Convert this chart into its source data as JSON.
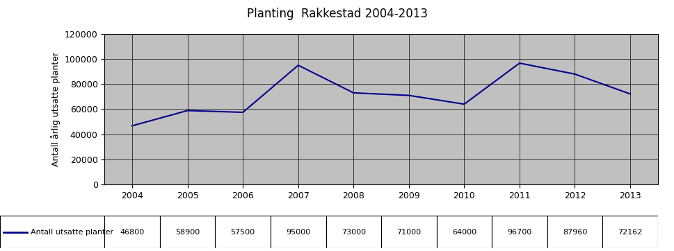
{
  "title": "Planting  Rakkestad 2004-2013",
  "years": [
    2004,
    2005,
    2006,
    2007,
    2008,
    2009,
    2010,
    2011,
    2012,
    2013
  ],
  "values": [
    46800,
    58900,
    57500,
    95000,
    73000,
    71000,
    64000,
    96700,
    87960,
    72162
  ],
  "ylabel": "Antall årlig utsatte planter",
  "legend_label": "Antall utsatte planter",
  "line_color": "#00008B",
  "plot_bg_color": "#C0C0C0",
  "fig_bg_color": "#FFFFFF",
  "ylim": [
    0,
    120000
  ],
  "yticks": [
    0,
    20000,
    40000,
    60000,
    80000,
    100000,
    120000
  ],
  "grid_color": "#000000",
  "table_values": [
    "46800",
    "58900",
    "57500",
    "95000",
    "73000",
    "71000",
    "64000",
    "96700",
    "87960",
    "72162"
  ],
  "xlim_left": 2003.5,
  "xlim_right": 2013.5
}
